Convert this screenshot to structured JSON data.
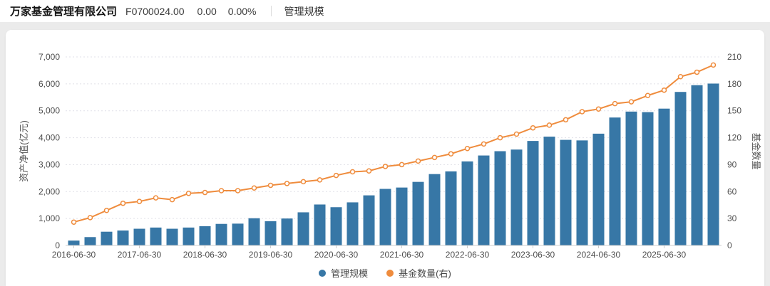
{
  "header": {
    "company_name": "万家基金管理有限公司",
    "fund_code": "F0700024.00",
    "change": "0.00",
    "change_pct": "0.00%",
    "tab_label": "管理规模"
  },
  "legend": {
    "items": [
      {
        "label": "管理规模",
        "color": "#3777a6"
      },
      {
        "label": "基金数量(右)",
        "color": "#ef8c3d"
      }
    ]
  },
  "chart_data": {
    "type": "bar+line",
    "categories": [
      "2016-06-30",
      "2016-09-30",
      "2016-12-31",
      "2017-03-31",
      "2017-06-30",
      "2017-09-30",
      "2017-12-31",
      "2018-03-31",
      "2018-06-30",
      "2018-09-30",
      "2018-12-31",
      "2019-03-31",
      "2019-06-30",
      "2019-09-30",
      "2019-12-31",
      "2020-03-31",
      "2020-06-30",
      "2020-09-30",
      "2020-12-31",
      "2021-03-31",
      "2021-06-30",
      "2021-09-30",
      "2021-12-31",
      "2022-03-31",
      "2022-06-30",
      "2022-09-30",
      "2022-12-31",
      "2023-03-31",
      "2023-06-30",
      "2023-09-30",
      "2023-12-31",
      "2024-03-31",
      "2024-06-30",
      "2024-09-30",
      "2024-12-31",
      "2025-03-31",
      "2025-06-30",
      "2025-09-30",
      "2025-12-31",
      "2026-03-31"
    ],
    "x_tick_labels": [
      "2016-06-30",
      "2017-06-30",
      "2018-06-30",
      "2019-06-30",
      "2020-06-30",
      "2021-06-30",
      "2022-06-30",
      "2023-06-30",
      "2024-06-30",
      "2025-06-30"
    ],
    "x_tick_interval": 4,
    "series": [
      {
        "name": "管理规模",
        "type": "bar",
        "axis": "left",
        "color": "#3777a6",
        "values": [
          180,
          310,
          510,
          555,
          620,
          665,
          620,
          665,
          715,
          800,
          810,
          1010,
          900,
          1000,
          1230,
          1520,
          1420,
          1600,
          1860,
          2100,
          2150,
          2360,
          2650,
          2750,
          3120,
          3340,
          3500,
          3560,
          3880,
          4040,
          3920,
          3900,
          4150,
          4750,
          4970,
          4950,
          5080,
          5700,
          5950,
          6010
        ]
      },
      {
        "name": "基金数量(右)",
        "type": "line",
        "axis": "right",
        "color": "#ef8c3d",
        "values": [
          26,
          31,
          39,
          47,
          49,
          53,
          51,
          58,
          59,
          61,
          61,
          64,
          67,
          69,
          71,
          73,
          78,
          82,
          83,
          88,
          90,
          94,
          98,
          102,
          108,
          113,
          120,
          124,
          131,
          134,
          140,
          149,
          152,
          158,
          160,
          167,
          173,
          188,
          193,
          201
        ]
      }
    ],
    "left_axis": {
      "name": "资产净值(亿元)",
      "min": 0,
      "max": 7000,
      "step": 1000,
      "tick_labels": [
        "0",
        "1,000",
        "2,000",
        "3,000",
        "4,000",
        "5,000",
        "6,000",
        "7,000"
      ]
    },
    "right_axis": {
      "name": "基金数量",
      "min": 0,
      "max": 210,
      "step": 30,
      "tick_labels": [
        "0",
        "30",
        "60",
        "90",
        "120",
        "150",
        "180",
        "210"
      ]
    },
    "grid": true,
    "legend_position": "bottom"
  },
  "style": {
    "grid_color": "#e1e1e8",
    "axis_line_color": "#cccccc",
    "tick_text_color": "#4d4d4d",
    "axis_name_color": "#555555"
  }
}
